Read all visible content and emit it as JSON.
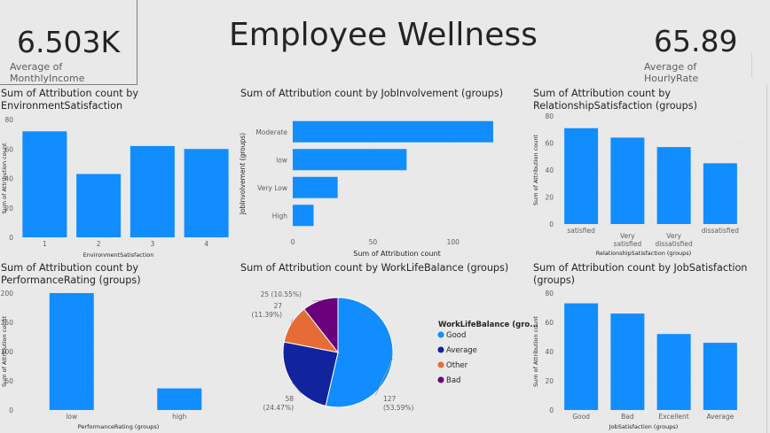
{
  "page_title": "Employee Wellness",
  "kpis": {
    "left": {
      "value": "6.503K",
      "label": "Average of MonthlyIncome"
    },
    "right": {
      "value": "65.89",
      "label": "Average of HourlyRate"
    }
  },
  "colors": {
    "bar": "#118dff",
    "text": "#252423",
    "muted": "#605e5c",
    "grid": "#e1dfdd",
    "background": "#e9e9e9"
  },
  "chart_data": [
    {
      "id": "env",
      "type": "bar",
      "title": "Sum of Attribution count by EnvironmentSatisfaction",
      "xlabel": "EnvironmentSatisfaction",
      "ylabel": "Sum of Attribution count",
      "categories": [
        "1",
        "2",
        "3",
        "4"
      ],
      "values": [
        72,
        43,
        62,
        60
      ],
      "ylim": [
        0,
        80
      ],
      "yticks": [
        0,
        20,
        40,
        60,
        80
      ],
      "grid": true
    },
    {
      "id": "job",
      "type": "bar",
      "orientation": "horizontal",
      "title": "Sum of Attribution count by JobInvolvement (groups)",
      "xlabel": "Sum of Attribution count",
      "ylabel": "JobInvolvement (groups)",
      "categories": [
        "Moderate",
        "low",
        "Very Low",
        "High"
      ],
      "values": [
        125,
        71,
        28,
        13
      ],
      "xlim": [
        0,
        130
      ],
      "xticks": [
        0,
        50,
        100
      ],
      "grid": true
    },
    {
      "id": "rel",
      "type": "bar",
      "title": "Sum of Attribution count by RelationshipSatisfaction (groups)",
      "xlabel": "RelationshipSatisfaction (groups)",
      "ylabel": "Sum of Attribution count",
      "categories": [
        "satisfied",
        "Very satisfied",
        "Very dissatisfied",
        "dissatisfied"
      ],
      "values": [
        71,
        64,
        57,
        45
      ],
      "ylim": [
        0,
        80
      ],
      "yticks": [
        0,
        20,
        40,
        60,
        80
      ],
      "grid": true
    },
    {
      "id": "perf",
      "type": "bar",
      "title": "Sum of Attribution count by PerformanceRating (groups)",
      "xlabel": "PerformanceRating (groups)",
      "ylabel": "Sum of Attribution count",
      "categories": [
        "low",
        "high"
      ],
      "values": [
        200,
        37
      ],
      "ylim": [
        0,
        200
      ],
      "yticks": [
        0,
        50,
        100,
        150,
        200
      ],
      "grid": true
    },
    {
      "id": "wlb",
      "type": "pie",
      "title": "Sum of Attribution count by WorkLifeBalance (groups)",
      "legend_title": "WorkLifeBalance (gro...",
      "legend_position": "right",
      "series": [
        {
          "name": "Good",
          "value": 127,
          "label": "127",
          "pct": "(53.59%)",
          "color": "#118dff"
        },
        {
          "name": "Average",
          "value": 58,
          "label": "58",
          "pct": "(24.47%)",
          "color": "#12239e"
        },
        {
          "name": "Other",
          "value": 27,
          "label": "27",
          "pct": "(11.39%)",
          "color": "#e66c37"
        },
        {
          "name": "Bad",
          "value": 25,
          "label": "25 (10.55%)",
          "pct": "",
          "color": "#6b007b"
        }
      ]
    },
    {
      "id": "jsat",
      "type": "bar",
      "title": "Sum of Attribution count by JobSatisfaction (groups)",
      "xlabel": "JobSatisfaction (groups)",
      "ylabel": "Sum of Attribution count",
      "categories": [
        "Good",
        "Bad",
        "Excellent",
        "Average"
      ],
      "values": [
        73,
        66,
        52,
        46
      ],
      "ylim": [
        0,
        80
      ],
      "yticks": [
        0,
        20,
        40,
        60,
        80
      ],
      "grid": true
    }
  ]
}
